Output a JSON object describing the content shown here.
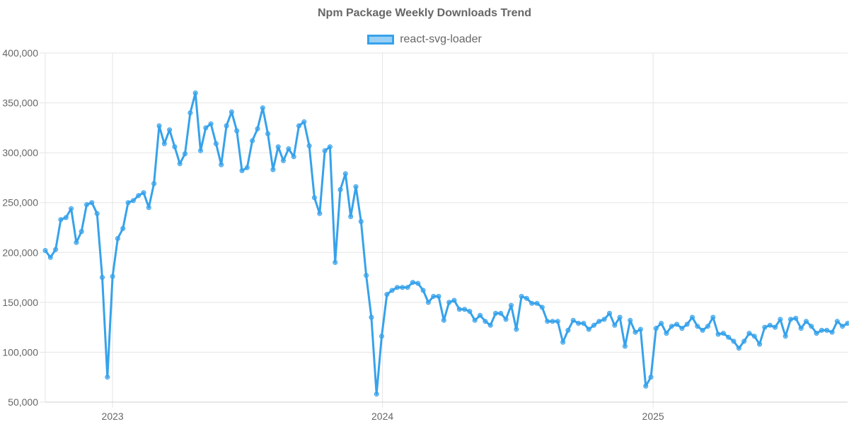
{
  "chart_data": {
    "type": "line",
    "title": "Npm Package Weekly Downloads Trend",
    "xlabel": "",
    "ylabel": "",
    "x_range": [
      "2022-10-02",
      "2025-09-21"
    ],
    "ylim": [
      50000,
      400000
    ],
    "y_ticks": [
      "50,000",
      "100,000",
      "150,000",
      "200,000",
      "250,000",
      "300,000",
      "350,000",
      "400,000"
    ],
    "x_ticks": [
      {
        "label": "2023",
        "date": "2023-01-01"
      },
      {
        "label": "2024",
        "date": "2024-01-01"
      },
      {
        "label": "2025",
        "date": "2025-01-01"
      }
    ],
    "grid": true,
    "legend": "top-center",
    "series": [
      {
        "name": "react-svg-loader",
        "color": "#36A2EB",
        "x": [
          "2022-10-02",
          "2022-10-09",
          "2022-10-16",
          "2022-10-23",
          "2022-10-30",
          "2022-11-06",
          "2022-11-13",
          "2022-11-20",
          "2022-11-27",
          "2022-12-04",
          "2022-12-11",
          "2022-12-18",
          "2022-12-25",
          "2023-01-01",
          "2023-01-08",
          "2023-01-15",
          "2023-01-22",
          "2023-01-29",
          "2023-02-05",
          "2023-02-12",
          "2023-02-19",
          "2023-02-26",
          "2023-03-05",
          "2023-03-12",
          "2023-03-19",
          "2023-03-26",
          "2023-04-02",
          "2023-04-09",
          "2023-04-16",
          "2023-04-23",
          "2023-04-30",
          "2023-05-07",
          "2023-05-14",
          "2023-05-21",
          "2023-05-28",
          "2023-06-04",
          "2023-06-11",
          "2023-06-18",
          "2023-06-25",
          "2023-07-02",
          "2023-07-09",
          "2023-07-16",
          "2023-07-23",
          "2023-07-30",
          "2023-08-06",
          "2023-08-13",
          "2023-08-20",
          "2023-08-27",
          "2023-09-03",
          "2023-09-10",
          "2023-09-17",
          "2023-09-24",
          "2023-10-01",
          "2023-10-08",
          "2023-10-15",
          "2023-10-22",
          "2023-10-29",
          "2023-11-05",
          "2023-11-12",
          "2023-11-19",
          "2023-11-26",
          "2023-12-03",
          "2023-12-10",
          "2023-12-17",
          "2023-12-24",
          "2023-12-31",
          "2024-01-07",
          "2024-01-14",
          "2024-01-21",
          "2024-01-28",
          "2024-02-04",
          "2024-02-11",
          "2024-02-18",
          "2024-02-25",
          "2024-03-03",
          "2024-03-10",
          "2024-03-17",
          "2024-03-24",
          "2024-03-31",
          "2024-04-07",
          "2024-04-14",
          "2024-04-21",
          "2024-04-28",
          "2024-05-05",
          "2024-05-12",
          "2024-05-19",
          "2024-05-26",
          "2024-06-02",
          "2024-06-09",
          "2024-06-16",
          "2024-06-23",
          "2024-06-30",
          "2024-07-07",
          "2024-07-14",
          "2024-07-21",
          "2024-07-28",
          "2024-08-04",
          "2024-08-11",
          "2024-08-18",
          "2024-08-25",
          "2024-09-01",
          "2024-09-08",
          "2024-09-15",
          "2024-09-22",
          "2024-09-29",
          "2024-10-06",
          "2024-10-13",
          "2024-10-20",
          "2024-10-27",
          "2024-11-03",
          "2024-11-10",
          "2024-11-17",
          "2024-11-24",
          "2024-12-01",
          "2024-12-08",
          "2024-12-15",
          "2024-12-22",
          "2024-12-29",
          "2025-01-05",
          "2025-01-12",
          "2025-01-19",
          "2025-01-26",
          "2025-02-02",
          "2025-02-09",
          "2025-02-16",
          "2025-02-23",
          "2025-03-02",
          "2025-03-09",
          "2025-03-16",
          "2025-03-23",
          "2025-03-30",
          "2025-04-06",
          "2025-04-13",
          "2025-04-20",
          "2025-04-27",
          "2025-05-04",
          "2025-05-11",
          "2025-05-18",
          "2025-05-25",
          "2025-06-01",
          "2025-06-08",
          "2025-06-15",
          "2025-06-22",
          "2025-06-29",
          "2025-07-06",
          "2025-07-13",
          "2025-07-20",
          "2025-07-27",
          "2025-08-03",
          "2025-08-10",
          "2025-08-17",
          "2025-08-24",
          "2025-08-31",
          "2025-09-07",
          "2025-09-14",
          "2025-09-21"
        ],
        "values": [
          202000,
          195000,
          203000,
          233000,
          235000,
          244000,
          210000,
          221000,
          248000,
          250000,
          239000,
          175000,
          75000,
          176000,
          214000,
          224000,
          250000,
          252000,
          257000,
          260000,
          245000,
          269000,
          327000,
          309000,
          323000,
          306000,
          289000,
          299000,
          340000,
          360000,
          302000,
          325000,
          329000,
          309000,
          288000,
          327000,
          341000,
          322000,
          282000,
          285000,
          312000,
          324000,
          345000,
          319000,
          283000,
          306000,
          292000,
          304000,
          296000,
          327000,
          331000,
          307000,
          255000,
          239000,
          302000,
          306000,
          190000,
          263000,
          279000,
          236000,
          266000,
          231000,
          177000,
          135000,
          58000,
          116000,
          158000,
          162000,
          165000,
          165000,
          165000,
          170000,
          169000,
          162000,
          150000,
          156000,
          156000,
          132000,
          150000,
          152000,
          143000,
          143000,
          141000,
          132000,
          137000,
          131000,
          127000,
          139000,
          139000,
          133000,
          147000,
          123000,
          156000,
          154000,
          149000,
          149000,
          145000,
          131000,
          131000,
          131000,
          110000,
          122000,
          132000,
          129000,
          129000,
          123000,
          127000,
          131000,
          133000,
          139000,
          127000,
          135000,
          106000,
          132000,
          120000,
          123000,
          66000,
          75000,
          124000,
          129000,
          119000,
          126000,
          128000,
          124000,
          128000,
          135000,
          126000,
          122000,
          126000,
          135000,
          118000,
          119000,
          115000,
          111000,
          104000,
          111000,
          119000,
          116000,
          108000,
          125000,
          127000,
          125000,
          133000,
          116000,
          133000,
          134000,
          124000,
          131000,
          126000,
          119000,
          122000,
          122000,
          120000,
          131000,
          126000,
          129000
        ]
      }
    ]
  }
}
